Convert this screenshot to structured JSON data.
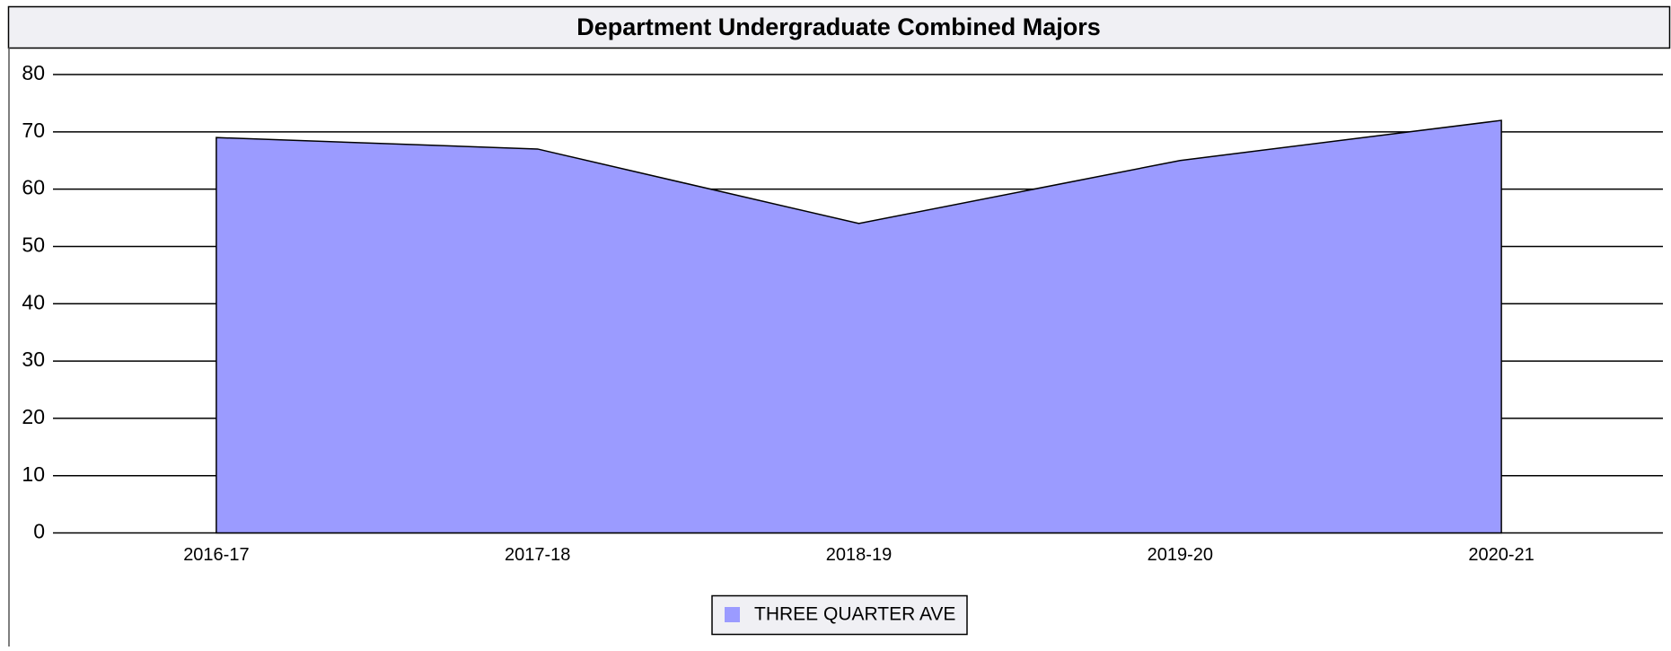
{
  "chart_data": {
    "type": "area",
    "title": "Department Undergraduate Combined Majors",
    "categories": [
      "2016-17",
      "2017-18",
      "2018-19",
      "2019-20",
      "2020-21"
    ],
    "series": [
      {
        "name": "THREE QUARTER AVE",
        "color": "#9b9bff",
        "values": [
          69,
          67,
          54,
          65,
          72
        ]
      }
    ],
    "ylim": [
      0,
      80
    ],
    "yticks": [
      0,
      10,
      20,
      30,
      40,
      50,
      60,
      70,
      80
    ],
    "grid": true,
    "legend": "bottom"
  }
}
